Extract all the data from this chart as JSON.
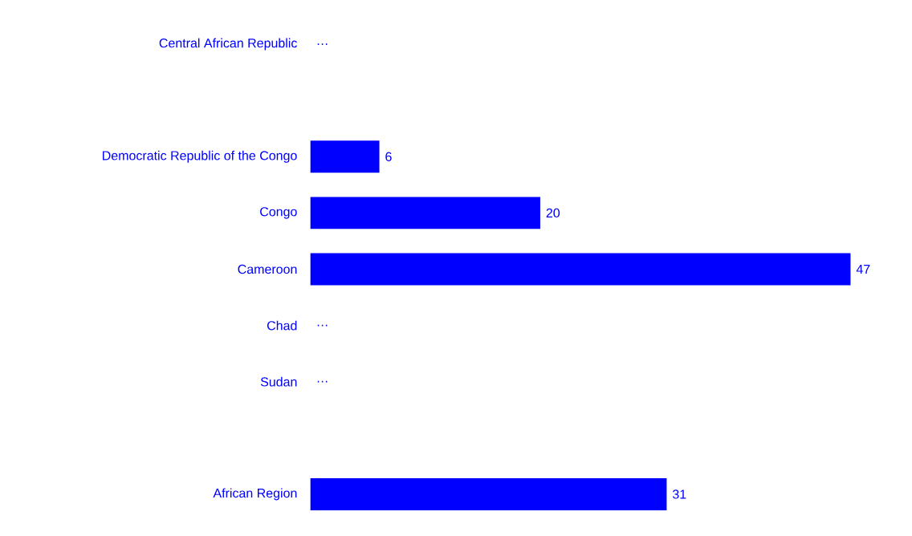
{
  "chart_data": {
    "type": "bar",
    "orientation": "horizontal",
    "categories": [
      "Central African Republic",
      null,
      "Democratic Republic of the Congo",
      "Congo",
      "Cameroon",
      "Chad",
      "Sudan",
      null,
      "African Region"
    ],
    "values": [
      null,
      null,
      6,
      20,
      47,
      null,
      null,
      null,
      31
    ],
    "value_labels": [
      "…",
      null,
      "6",
      "20",
      "47",
      "…",
      "…",
      null,
      "31"
    ],
    "color": "#0000ff"
  }
}
